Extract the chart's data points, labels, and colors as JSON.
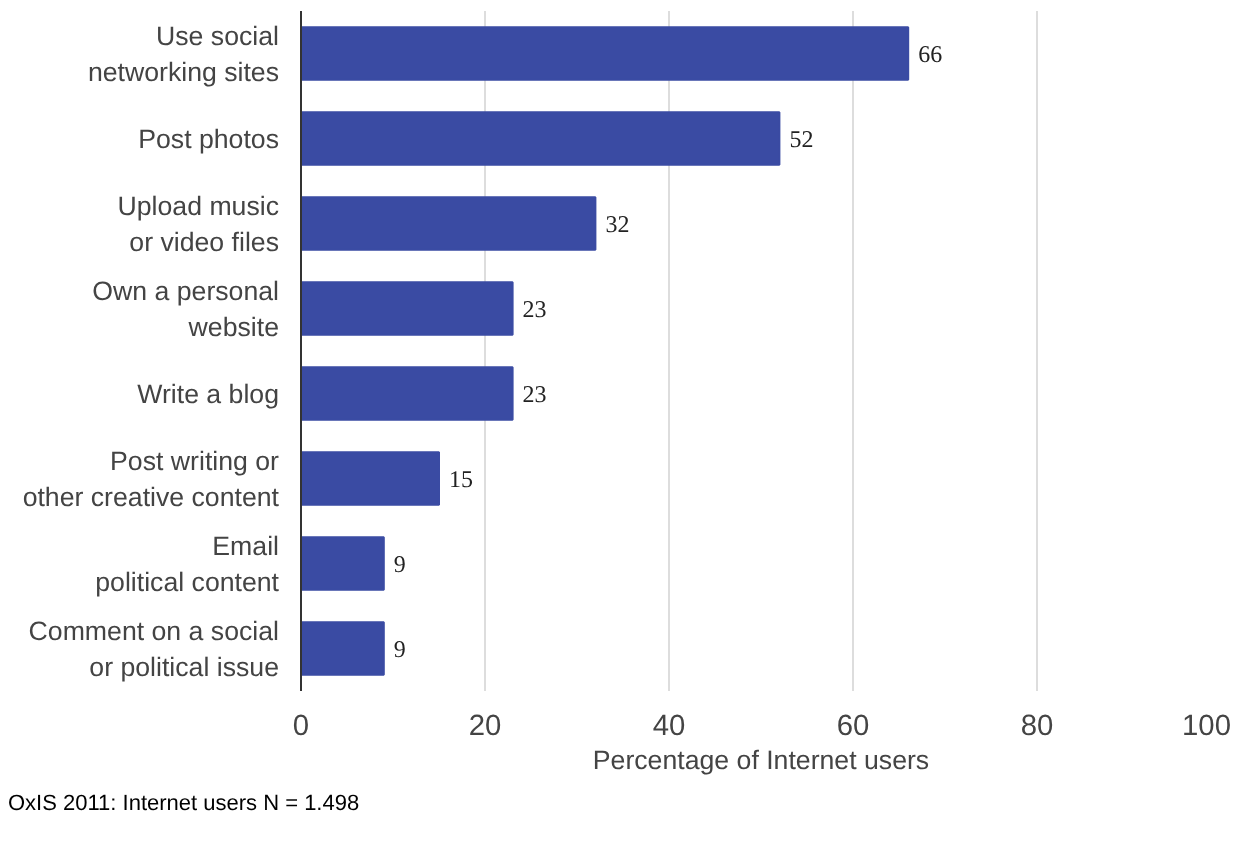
{
  "chart_data": {
    "type": "bar",
    "orientation": "horizontal",
    "categories": [
      "Use social\nnetworking sites",
      "Post photos",
      "Upload music\nor video files",
      "Own a personal\nwebsite",
      "Write a blog",
      "Post writing or\nother creative content",
      "Email\npolitical content",
      "Comment on a social\nor political issue"
    ],
    "values": [
      66,
      52,
      32,
      23,
      23,
      15,
      9,
      9
    ],
    "color": "#3a4ba3",
    "xlim": [
      0,
      100
    ],
    "xticks": [
      0,
      20,
      40,
      60,
      80,
      100
    ],
    "xlabel": "Percentage of Internet users",
    "grid": "x",
    "data_labels": true,
    "annotations": [
      "OxIS 2011: Internet users N = 1.498"
    ]
  }
}
